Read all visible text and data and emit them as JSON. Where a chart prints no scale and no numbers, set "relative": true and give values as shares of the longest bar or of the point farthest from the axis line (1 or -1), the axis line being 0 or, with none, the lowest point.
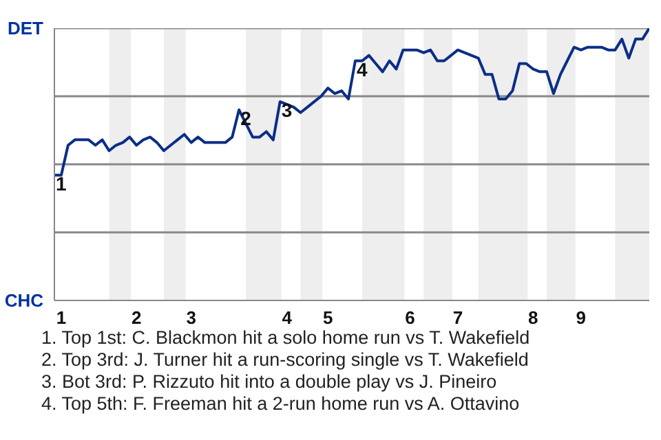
{
  "chart_data": {
    "type": "line",
    "relative": true,
    "categories": [
      null,
      "1",
      null,
      null,
      null,
      null,
      null,
      null,
      null,
      null,
      null,
      null,
      "2",
      null,
      null,
      null,
      null,
      null,
      null,
      null,
      "3",
      null,
      null,
      null,
      null,
      null,
      null,
      null,
      null,
      null,
      null,
      null,
      null,
      null,
      "4",
      null,
      null,
      null,
      null,
      null,
      "5",
      null,
      null,
      null,
      null,
      null,
      null,
      null,
      null,
      null,
      null,
      null,
      "6",
      null,
      null,
      null,
      null,
      null,
      null,
      "7",
      null,
      null,
      null,
      null,
      null,
      null,
      null,
      null,
      null,
      null,
      "8",
      null,
      null,
      null,
      null,
      null,
      null,
      "9",
      null,
      null,
      null,
      null,
      null,
      null,
      null,
      null,
      null,
      null
    ],
    "series": [
      {
        "color": "#0b2e86",
        "values": [
          0.46,
          0.46,
          0.57,
          0.59,
          0.59,
          0.59,
          0.57,
          0.59,
          0.55,
          0.57,
          0.58,
          0.6,
          0.57,
          0.59,
          0.6,
          0.58,
          0.55,
          0.57,
          0.59,
          0.61,
          0.58,
          0.6,
          0.58,
          0.58,
          0.58,
          0.58,
          0.6,
          0.7,
          0.65,
          0.6,
          0.6,
          0.62,
          0.59,
          0.73,
          0.72,
          0.71,
          0.69,
          0.71,
          0.73,
          0.75,
          0.78,
          0.76,
          0.77,
          0.74,
          0.88,
          0.88,
          0.9,
          0.87,
          0.84,
          0.88,
          0.85,
          0.92,
          0.92,
          0.92,
          0.91,
          0.92,
          0.88,
          0.88,
          0.9,
          0.92,
          0.91,
          0.9,
          0.89,
          0.83,
          0.83,
          0.74,
          0.74,
          0.77,
          0.87,
          0.87,
          0.85,
          0.84,
          0.84,
          0.76,
          0.83,
          0.88,
          0.93,
          0.92,
          0.93,
          0.93,
          0.93,
          0.92,
          0.92,
          0.96,
          0.89,
          0.96,
          0.96,
          1.0
        ]
      }
    ],
    "grid": false,
    "marker": "none",
    "line_style": "solid",
    "ref_lines": [
      {
        "axis": "y",
        "value": 0.25,
        "color": "#888888"
      },
      {
        "axis": "y",
        "value": 0.5,
        "color": "#888888"
      },
      {
        "axis": "y",
        "value": 0.75,
        "color": "#888888"
      },
      {
        "axis": "y",
        "value": 1,
        "color": "#888888"
      }
    ],
    "annotations": [
      "DET",
      "CHC",
      {
        "text": "1",
        "y": 0.46
      },
      {
        "text": "2",
        "y": 0.7
      },
      {
        "text": "3",
        "y": 0.73
      },
      {
        "text": "4",
        "y": 0.88
      },
      "1. Top 1st: C. Blackmon hit a solo home run vs T. Wakefield",
      "2. Top 3rd: J. Turner hit a run-scoring single vs T. Wakefield",
      "3. Bot 3rd: P. Rizzuto hit into a double play vs J. Pineiro",
      "4. Top 5th: F. Freeman hit a 2-run home run vs A. Ottavino"
    ]
  }
}
